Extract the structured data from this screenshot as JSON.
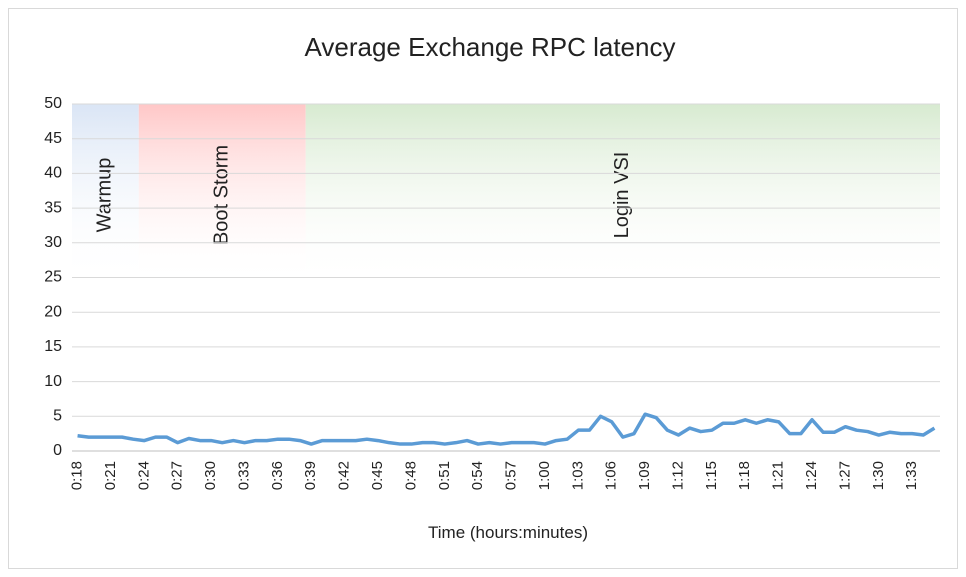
{
  "chart_data": {
    "type": "line",
    "title": "Average Exchange RPC latency",
    "x_label": "Time (hours:minutes)",
    "categories": [
      "0:18",
      null,
      null,
      "0:21",
      null,
      null,
      "0:24",
      null,
      null,
      "0:27",
      null,
      null,
      "0:30",
      null,
      null,
      "0:33",
      null,
      null,
      "0:36",
      null,
      null,
      "0:39",
      null,
      null,
      "0:42",
      null,
      null,
      "0:45",
      null,
      null,
      "0:48",
      null,
      null,
      "0:51",
      null,
      null,
      "0:54",
      null,
      null,
      "0:57",
      null,
      null,
      "1:00",
      null,
      null,
      "1:03",
      null,
      null,
      "1:06",
      null,
      null,
      "1:09",
      null,
      null,
      "1:12",
      null,
      null,
      "1:15",
      null,
      null,
      "1:18",
      null,
      null,
      "1:21",
      null,
      null,
      "1:24",
      null,
      null,
      "1:27",
      null,
      null,
      "1:30",
      null,
      null,
      "1:33",
      null,
      null
    ],
    "series": [
      {
        "color": "#5b9bd5",
        "values": [
          2.2,
          2.0,
          2.0,
          2.0,
          2.0,
          1.7,
          1.5,
          2.0,
          2.0,
          1.2,
          1.8,
          1.5,
          1.5,
          1.2,
          1.5,
          1.2,
          1.5,
          1.5,
          1.7,
          1.7,
          1.5,
          1.0,
          1.5,
          1.5,
          1.5,
          1.5,
          1.7,
          1.5,
          1.2,
          1.0,
          1.0,
          1.2,
          1.2,
          1.0,
          1.2,
          1.5,
          1.0,
          1.2,
          1.0,
          1.2,
          1.2,
          1.2,
          1.0,
          1.5,
          1.7,
          3.0,
          3.0,
          5.0,
          4.2,
          2.0,
          2.5,
          5.3,
          4.8,
          3.0,
          2.3,
          3.3,
          2.8,
          3.0,
          4.0,
          4.0,
          4.5,
          4.0,
          4.5,
          4.2,
          2.5,
          2.5,
          4.5,
          2.7,
          2.7,
          3.5,
          3.0,
          2.8,
          2.3,
          2.7,
          2.5,
          2.5,
          2.3,
          3.3
        ]
      }
    ],
    "ylim": [
      0,
      50
    ],
    "yticks": [
      0,
      5,
      10,
      15,
      20,
      25,
      30,
      35,
      40,
      45,
      50
    ],
    "grid": true,
    "regions": [
      {
        "label": "Warmup",
        "color": "#dae5f5",
        "from": "0:18",
        "to": "0:24"
      },
      {
        "label": "Boot Storm",
        "color": "#ffc7c7",
        "from": "0:24",
        "to": "0:39"
      },
      {
        "label": "Login VSI",
        "color": "#d7ead0",
        "from": "0:39"
      }
    ]
  }
}
